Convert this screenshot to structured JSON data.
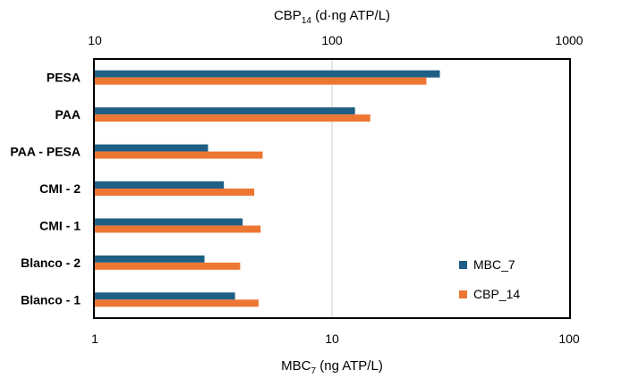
{
  "chart_data": {
    "type": "bar",
    "orientation": "horizontal",
    "categories": [
      "PESA",
      "PAA",
      "PAA - PESA",
      "CMI - 2",
      "CMI - 1",
      "Blanco - 2",
      "Blanco - 1"
    ],
    "series": [
      {
        "name": "MBC_7",
        "color": "#1f5f84",
        "axis": "bottom",
        "values": [
          28.5,
          12.5,
          3.0,
          3.5,
          4.2,
          2.9,
          3.9
        ]
      },
      {
        "name": "CBP_14",
        "color": "#ee7633",
        "axis": "top",
        "values": [
          250,
          145,
          51,
          47,
          50,
          41,
          49
        ]
      }
    ],
    "x_bottom": {
      "label_main": "MBC",
      "label_sub": "7",
      "label_rest": " (ng ATP/L)",
      "scale": "log",
      "range": [
        1,
        100
      ],
      "ticks": [
        1,
        10,
        100
      ],
      "tick_labels": [
        "1",
        "10",
        "100"
      ]
    },
    "x_top": {
      "label_main": "CBP",
      "label_sub": "14",
      "label_rest": " (d·ng ATP/L)",
      "scale": "log",
      "range": [
        10,
        1000
      ],
      "ticks": [
        10,
        100,
        1000
      ],
      "tick_labels": [
        "10",
        "100",
        "1000"
      ]
    },
    "gridlines": "vertical at 10 (bottom axis)",
    "grid_color": "#d9d9d9",
    "legend": {
      "position": "bottom-right",
      "entries": [
        "MBC_7",
        "CBP_14"
      ]
    }
  }
}
